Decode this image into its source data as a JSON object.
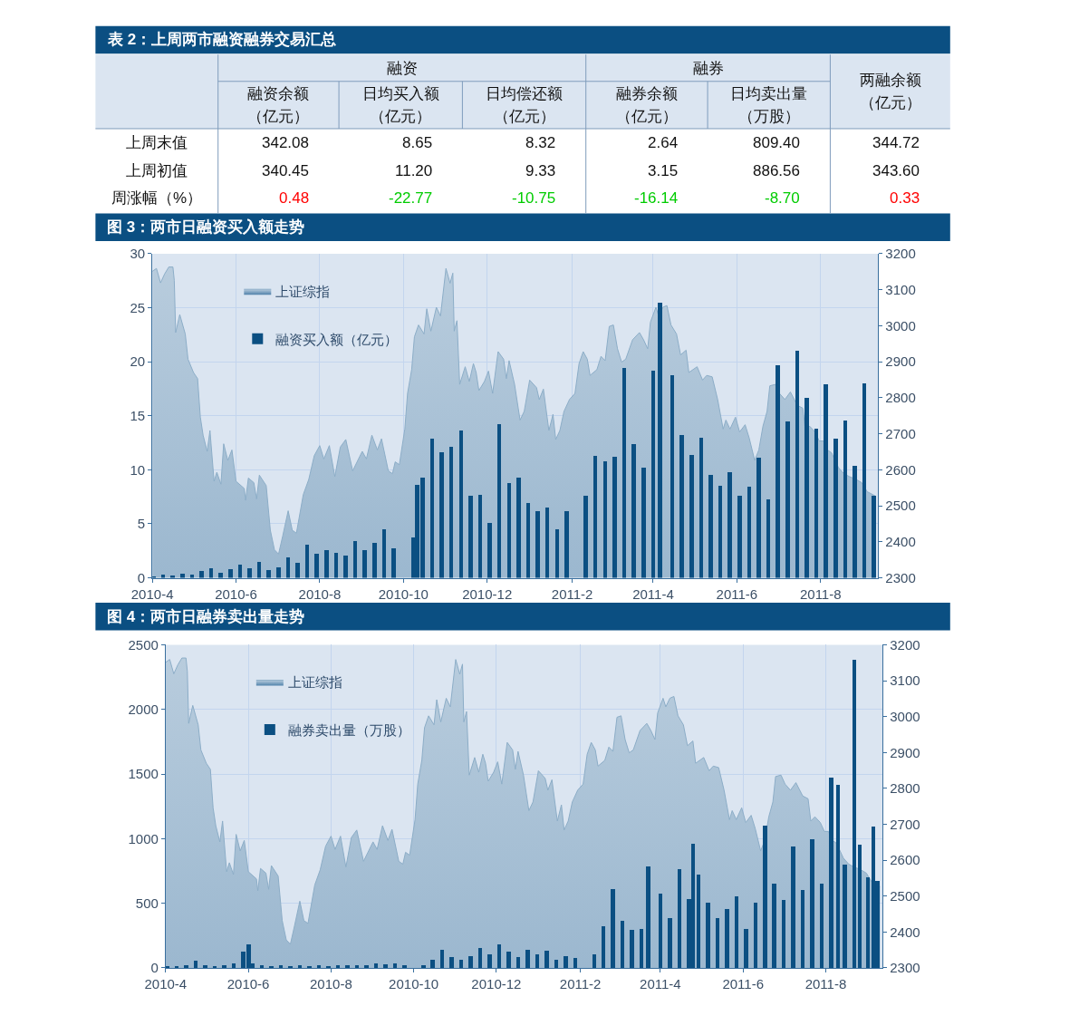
{
  "chart_data": [
    {
      "type": "other",
      "title": "表 2：上周两市融资融券交易汇总",
      "annotations": [
        "融资",
        "融券",
        "342.08",
        "8.65",
        "8.32",
        "2.64",
        "809.40",
        "344.72",
        "340.45",
        "11.20",
        "9.33",
        "3.15",
        "886.56",
        "343.60",
        "0.48",
        "-22.77",
        "-10.75",
        "-16.14",
        "-8.70",
        "0.33"
      ],
      "categories": [
        "融资余额（亿元）",
        "日均买入额（亿元）",
        "日均偿还额（亿元）",
        "融券余额（亿元）",
        "日均卖出量（万股）",
        "两融余额（亿元）"
      ],
      "y_categories": [
        "上周末值",
        "上周初值",
        "周涨幅（%）"
      ]
    },
    {
      "type": "bar",
      "title": "图 3：两市日融资买入额走势",
      "series": [
        {
          "name": "上证综指",
          "type": "area",
          "axis": "y2",
          "color": "#4f81aa",
          "x": [
            "2010-04-01",
            "2010-04-04",
            "2010-04-07",
            "2010-04-10",
            "2010-04-13",
            "2010-04-16",
            "2010-04-17",
            "2010-04-18",
            "2010-04-21",
            "2010-04-25",
            "2010-04-27",
            "2010-05-01",
            "2010-05-04",
            "2010-05-06",
            "2010-05-08",
            "2010-05-11",
            "2010-05-13",
            "2010-05-16",
            "2010-05-18",
            "2010-05-21",
            "2010-05-23",
            "2010-05-26",
            "2010-05-29",
            "2010-06-01",
            "2010-06-07",
            "2010-06-08",
            "2010-06-10",
            "2010-06-14",
            "2010-06-16",
            "2010-06-18",
            "2010-06-23",
            "2010-06-26",
            "2010-06-29",
            "2010-07-02",
            "2010-07-05",
            "2010-07-09",
            "2010-07-12",
            "2010-07-15",
            "2010-07-20",
            "2010-07-24",
            "2010-07-28",
            "2010-08-01",
            "2010-08-04",
            "2010-08-08",
            "2010-08-12",
            "2010-08-16",
            "2010-08-20",
            "2010-08-25",
            "2010-09-01",
            "2010-09-04",
            "2010-09-08",
            "2010-09-12",
            "2010-09-15",
            "2010-09-20",
            "2010-09-23",
            "2010-09-25",
            "2010-09-28",
            "2010-10-02",
            "2010-10-04",
            "2010-10-07",
            "2010-10-09",
            "2010-10-12",
            "2010-10-16",
            "2010-10-18",
            "2010-10-21",
            "2010-10-25",
            "2010-10-28",
            "2010-11-01",
            "2010-11-04",
            "2010-11-06",
            "2010-11-07",
            "2010-11-09",
            "2010-11-11",
            "2010-11-15",
            "2010-11-18",
            "2010-11-21",
            "2010-11-23",
            "2010-11-25",
            "2010-11-29",
            "2010-12-02",
            "2010-12-05",
            "2010-12-09",
            "2010-12-13",
            "2010-12-15",
            "2010-12-17",
            "2010-12-21",
            "2010-12-25",
            "2010-12-28",
            "2011-01-01",
            "2011-01-06",
            "2011-01-08",
            "2011-01-11",
            "2011-01-15",
            "2011-01-18",
            "2011-01-20",
            "2011-01-23",
            "2011-01-26",
            "2011-01-30",
            "2011-02-03",
            "2011-02-06",
            "2011-02-09",
            "2011-02-12",
            "2011-02-14",
            "2011-02-19",
            "2011-02-22",
            "2011-02-25",
            "2011-02-28",
            "2011-03-03",
            "2011-03-06",
            "2011-03-09",
            "2011-03-12",
            "2011-03-17",
            "2011-03-22",
            "2011-03-25",
            "2011-03-28",
            "2011-03-30",
            "2011-04-03",
            "2011-04-05",
            "2011-04-08",
            "2011-04-11",
            "2011-04-14",
            "2011-04-18",
            "2011-04-21",
            "2011-04-25",
            "2011-04-27",
            "2011-05-03",
            "2011-05-07",
            "2011-05-10",
            "2011-05-14",
            "2011-05-18",
            "2011-05-22",
            "2011-05-24",
            "2011-05-27",
            "2011-05-31",
            "2011-06-03",
            "2011-06-07",
            "2011-06-10",
            "2011-06-14",
            "2011-06-17",
            "2011-06-20",
            "2011-06-23",
            "2011-06-25",
            "2011-06-29",
            "2011-07-02",
            "2011-07-06",
            "2011-07-10",
            "2011-07-15",
            "2011-07-19",
            "2011-07-21",
            "2011-07-24",
            "2011-07-28",
            "2011-07-31",
            "2011-08-03",
            "2011-08-06",
            "2011-08-09",
            "2011-08-14",
            "2011-08-18",
            "2011-08-22",
            "2011-08-27",
            "2011-08-31",
            "2011-09-04",
            "2011-09-10"
          ],
          "values": [
            3151,
            3159,
            3119,
            3144,
            3163,
            3163,
            3126,
            2981,
            3031,
            2977,
            2907,
            2870,
            2853,
            2746,
            2696,
            2651,
            2709,
            2568,
            2593,
            2560,
            2672,
            2626,
            2655,
            2568,
            2548,
            2515,
            2577,
            2564,
            2519,
            2585,
            2556,
            2432,
            2378,
            2366,
            2416,
            2486,
            2432,
            2424,
            2531,
            2573,
            2639,
            2667,
            2630,
            2667,
            2581,
            2663,
            2684,
            2597,
            2651,
            2630,
            2696,
            2655,
            2686,
            2597,
            2589,
            2622,
            2614,
            2713,
            2812,
            2878,
            2969,
            3002,
            2977,
            3047,
            2985,
            3051,
            3027,
            3159,
            3118,
            3146,
            2985,
            3014,
            2837,
            2886,
            2845,
            2895,
            2870,
            2820,
            2845,
            2874,
            2812,
            2928,
            2907,
            2853,
            2903,
            2837,
            2738,
            2762,
            2849,
            2828,
            2795,
            2824,
            2709,
            2754,
            2684,
            2709,
            2762,
            2795,
            2812,
            2895,
            2928,
            2907,
            2862,
            2878,
            2915,
            2903,
            2998,
            3002,
            2936,
            2899,
            2907,
            2961,
            2981,
            2961,
            2936,
            3010,
            3051,
            3027,
            3051,
            3056,
            3002,
            2977,
            2919,
            2932,
            2870,
            2886,
            2849,
            2862,
            2858,
            2795,
            2713,
            2738,
            2713,
            2746,
            2705,
            2725,
            2688,
            2626,
            2655,
            2721,
            2762,
            2833,
            2837,
            2812,
            2795,
            2816,
            2779,
            2771,
            2709,
            2721,
            2705,
            2680,
            2680,
            2655,
            2647,
            2606,
            2589,
            2581,
            2573,
            2564,
            2539,
            2527
          ]
        },
        {
          "name": "融资买入额（亿元）",
          "color": "#0b4f82",
          "x": [
            "2010-04-02",
            "2010-04-09",
            "2010-04-16",
            "2010-04-23",
            "2010-04-30",
            "2010-05-07",
            "2010-05-14",
            "2010-05-21",
            "2010-05-28",
            "2010-06-04",
            "2010-06-11",
            "2010-06-18",
            "2010-06-25",
            "2010-07-02",
            "2010-07-09",
            "2010-07-16",
            "2010-07-23",
            "2010-07-30",
            "2010-08-06",
            "2010-08-13",
            "2010-08-20",
            "2010-08-27",
            "2010-09-03",
            "2010-09-10",
            "2010-09-17",
            "2010-09-24",
            "2010-10-08",
            "2010-10-11",
            "2010-10-15",
            "2010-10-22",
            "2010-10-29",
            "2010-11-05",
            "2010-11-12",
            "2010-11-19",
            "2010-11-26",
            "2010-12-03",
            "2010-12-10",
            "2010-12-17",
            "2010-12-24",
            "2010-12-31",
            "2011-01-07",
            "2011-01-14",
            "2011-01-21",
            "2011-01-28",
            "2011-02-11",
            "2011-02-18",
            "2011-02-25",
            "2011-03-04",
            "2011-03-11",
            "2011-03-18",
            "2011-03-25",
            "2011-04-01",
            "2011-04-06",
            "2011-04-15",
            "2011-04-22",
            "2011-04-29",
            "2011-05-06",
            "2011-05-13",
            "2011-05-20",
            "2011-05-27",
            "2011-06-03",
            "2011-06-10",
            "2011-06-17",
            "2011-06-24",
            "2011-07-01",
            "2011-07-08",
            "2011-07-15",
            "2011-07-22",
            "2011-07-29",
            "2011-08-05",
            "2011-08-12",
            "2011-08-19",
            "2011-08-26",
            "2011-09-02",
            "2011-09-09"
          ],
          "values": [
            0.1,
            0.3,
            0.2,
            0.4,
            0.3,
            0.6,
            0.9,
            0.5,
            0.8,
            1.2,
            0.9,
            1.5,
            0.7,
            1.0,
            1.9,
            1.4,
            3.1,
            2.2,
            2.6,
            2.3,
            2.1,
            3.4,
            2.6,
            3.2,
            4.5,
            2.7,
            3.7,
            8.6,
            9.3,
            12.9,
            11.6,
            12.1,
            13.6,
            7.6,
            7.7,
            5.1,
            14.2,
            8.8,
            9.3,
            6.9,
            6.2,
            6.5,
            4.5,
            6.2,
            7.6,
            11.3,
            10.8,
            11.2,
            19.4,
            12.4,
            10.2,
            19.2,
            25.5,
            18.8,
            13.2,
            11.4,
            13.0,
            9.5,
            8.5,
            9.8,
            7.6,
            8.4,
            11.1,
            7.3,
            19.7,
            14.5,
            21.0,
            16.7,
            13.8,
            17.9,
            12.9,
            14.6,
            10.4,
            18.0,
            7.6
          ]
        }
      ],
      "xlim": [
        "2010-04-01",
        "2011-09-12"
      ],
      "xticks": [
        {
          "value": "2010-04-01",
          "label": "2010-4"
        },
        {
          "value": "2010-06-01",
          "label": "2010-6"
        },
        {
          "value": "2010-08-01",
          "label": "2010-8"
        },
        {
          "value": "2010-10-01",
          "label": "2010-10"
        },
        {
          "value": "2010-12-01",
          "label": "2010-12"
        },
        {
          "value": "2011-02-01",
          "label": "2011-2"
        },
        {
          "value": "2011-04-01",
          "label": "2011-4"
        },
        {
          "value": "2011-06-01",
          "label": "2011-6"
        },
        {
          "value": "2011-08-01",
          "label": "2011-8"
        }
      ],
      "ylim": [
        0,
        30
      ],
      "yticks": [
        0,
        5,
        10,
        15,
        20,
        25,
        30
      ],
      "y2lim": [
        2300,
        3200
      ],
      "y2ticks": [
        2300,
        2400,
        2500,
        2600,
        2700,
        2800,
        2900,
        3000,
        3100,
        3200
      ],
      "grid": true,
      "legend": "top left"
    },
    {
      "type": "bar",
      "title": "图 4：两市日融券卖出量走势",
      "series": [
        {
          "name": "上证综指",
          "type": "area",
          "axis": "y2",
          "color": "#4f81aa",
          "x": [
            "2010-04-01",
            "2010-04-04",
            "2010-04-07",
            "2010-04-10",
            "2010-04-13",
            "2010-04-16",
            "2010-04-17",
            "2010-04-18",
            "2010-04-21",
            "2010-04-25",
            "2010-04-27",
            "2010-05-01",
            "2010-05-04",
            "2010-05-06",
            "2010-05-08",
            "2010-05-11",
            "2010-05-13",
            "2010-05-16",
            "2010-05-18",
            "2010-05-21",
            "2010-05-23",
            "2010-05-26",
            "2010-05-29",
            "2010-06-01",
            "2010-06-07",
            "2010-06-08",
            "2010-06-10",
            "2010-06-14",
            "2010-06-16",
            "2010-06-18",
            "2010-06-23",
            "2010-06-26",
            "2010-06-29",
            "2010-07-02",
            "2010-07-05",
            "2010-07-09",
            "2010-07-12",
            "2010-07-15",
            "2010-07-20",
            "2010-07-24",
            "2010-07-28",
            "2010-08-01",
            "2010-08-04",
            "2010-08-08",
            "2010-08-12",
            "2010-08-16",
            "2010-08-20",
            "2010-08-25",
            "2010-09-01",
            "2010-09-04",
            "2010-09-08",
            "2010-09-12",
            "2010-09-15",
            "2010-09-20",
            "2010-09-23",
            "2010-09-25",
            "2010-09-28",
            "2010-10-02",
            "2010-10-04",
            "2010-10-07",
            "2010-10-09",
            "2010-10-12",
            "2010-10-16",
            "2010-10-18",
            "2010-10-21",
            "2010-10-25",
            "2010-10-28",
            "2010-11-01",
            "2010-11-04",
            "2010-11-06",
            "2010-11-07",
            "2010-11-09",
            "2010-11-11",
            "2010-11-15",
            "2010-11-18",
            "2010-11-21",
            "2010-11-23",
            "2010-11-25",
            "2010-11-29",
            "2010-12-02",
            "2010-12-05",
            "2010-12-09",
            "2010-12-13",
            "2010-12-15",
            "2010-12-17",
            "2010-12-21",
            "2010-12-25",
            "2010-12-28",
            "2011-01-01",
            "2011-01-06",
            "2011-01-08",
            "2011-01-11",
            "2011-01-15",
            "2011-01-18",
            "2011-01-20",
            "2011-01-23",
            "2011-01-26",
            "2011-01-30",
            "2011-02-03",
            "2011-02-06",
            "2011-02-09",
            "2011-02-12",
            "2011-02-14",
            "2011-02-19",
            "2011-02-22",
            "2011-02-25",
            "2011-02-28",
            "2011-03-03",
            "2011-03-06",
            "2011-03-09",
            "2011-03-12",
            "2011-03-17",
            "2011-03-22",
            "2011-03-25",
            "2011-03-28",
            "2011-03-30",
            "2011-04-03",
            "2011-04-05",
            "2011-04-08",
            "2011-04-11",
            "2011-04-14",
            "2011-04-18",
            "2011-04-21",
            "2011-04-25",
            "2011-04-27",
            "2011-05-03",
            "2011-05-07",
            "2011-05-10",
            "2011-05-14",
            "2011-05-18",
            "2011-05-22",
            "2011-05-24",
            "2011-05-27",
            "2011-05-31",
            "2011-06-03",
            "2011-06-07",
            "2011-06-10",
            "2011-06-14",
            "2011-06-17",
            "2011-06-20",
            "2011-06-23",
            "2011-06-25",
            "2011-06-29",
            "2011-07-02",
            "2011-07-06",
            "2011-07-10",
            "2011-07-15",
            "2011-07-19",
            "2011-07-21",
            "2011-07-24",
            "2011-07-28",
            "2011-07-31",
            "2011-08-03",
            "2011-08-06",
            "2011-08-09",
            "2011-08-14",
            "2011-08-18",
            "2011-08-22",
            "2011-08-27",
            "2011-08-31",
            "2011-09-04",
            "2011-09-10"
          ],
          "values": [
            3151,
            3159,
            3119,
            3144,
            3163,
            3163,
            3126,
            2981,
            3031,
            2977,
            2907,
            2870,
            2853,
            2746,
            2696,
            2651,
            2709,
            2568,
            2593,
            2560,
            2672,
            2626,
            2655,
            2568,
            2548,
            2515,
            2577,
            2564,
            2519,
            2585,
            2556,
            2432,
            2378,
            2366,
            2416,
            2486,
            2432,
            2424,
            2531,
            2573,
            2639,
            2667,
            2630,
            2667,
            2581,
            2663,
            2684,
            2597,
            2651,
            2630,
            2696,
            2655,
            2686,
            2597,
            2589,
            2622,
            2614,
            2713,
            2812,
            2878,
            2969,
            3002,
            2977,
            3047,
            2985,
            3051,
            3027,
            3159,
            3118,
            3146,
            2985,
            3014,
            2837,
            2886,
            2845,
            2895,
            2870,
            2820,
            2845,
            2874,
            2812,
            2928,
            2907,
            2853,
            2903,
            2837,
            2738,
            2762,
            2849,
            2828,
            2795,
            2824,
            2709,
            2754,
            2684,
            2709,
            2762,
            2795,
            2812,
            2895,
            2928,
            2907,
            2862,
            2878,
            2915,
            2903,
            2998,
            3002,
            2936,
            2899,
            2907,
            2961,
            2981,
            2961,
            2936,
            3010,
            3051,
            3027,
            3051,
            3056,
            3002,
            2977,
            2919,
            2932,
            2870,
            2886,
            2849,
            2862,
            2858,
            2795,
            2713,
            2738,
            2713,
            2746,
            2705,
            2725,
            2688,
            2626,
            2655,
            2721,
            2762,
            2833,
            2837,
            2812,
            2795,
            2816,
            2779,
            2771,
            2709,
            2721,
            2705,
            2680,
            2680,
            2655,
            2647,
            2606,
            2589,
            2581,
            2573,
            2564,
            2539,
            2527
          ]
        },
        {
          "name": "融券卖出量（万股）",
          "color": "#0b4f82",
          "x": [
            "2010-04-02",
            "2010-04-09",
            "2010-04-16",
            "2010-04-23",
            "2010-04-30",
            "2010-05-07",
            "2010-05-14",
            "2010-05-21",
            "2010-05-28",
            "2010-06-01",
            "2010-06-04",
            "2010-06-11",
            "2010-06-18",
            "2010-06-25",
            "2010-07-02",
            "2010-07-09",
            "2010-07-16",
            "2010-07-23",
            "2010-07-30",
            "2010-08-06",
            "2010-08-13",
            "2010-08-20",
            "2010-08-27",
            "2010-09-03",
            "2010-09-10",
            "2010-09-17",
            "2010-09-24",
            "2010-10-08",
            "2010-10-15",
            "2010-10-22",
            "2010-10-29",
            "2010-11-05",
            "2010-11-12",
            "2010-11-19",
            "2010-11-26",
            "2010-12-03",
            "2010-12-10",
            "2010-12-17",
            "2010-12-24",
            "2010-12-31",
            "2011-01-07",
            "2011-01-14",
            "2011-01-21",
            "2011-01-28",
            "2011-02-11",
            "2011-02-18",
            "2011-02-25",
            "2011-03-04",
            "2011-03-11",
            "2011-03-18",
            "2011-03-23",
            "2011-04-01",
            "2011-04-08",
            "2011-04-15",
            "2011-04-22",
            "2011-04-25",
            "2011-04-29",
            "2011-05-06",
            "2011-05-13",
            "2011-05-20",
            "2011-05-27",
            "2011-06-03",
            "2011-06-10",
            "2011-06-17",
            "2011-06-24",
            "2011-07-01",
            "2011-07-08",
            "2011-07-15",
            "2011-07-22",
            "2011-07-29",
            "2011-08-05",
            "2011-08-10",
            "2011-08-15",
            "2011-08-22",
            "2011-08-26",
            "2011-09-01",
            "2011-09-05",
            "2011-09-08"
          ],
          "values": [
            5,
            10,
            15,
            50,
            20,
            10,
            15,
            35,
            120,
            180,
            30,
            20,
            10,
            15,
            10,
            15,
            10,
            15,
            10,
            20,
            15,
            15,
            20,
            30,
            25,
            35,
            20,
            15,
            60,
            135,
            80,
            60,
            90,
            150,
            100,
            180,
            120,
            80,
            140,
            100,
            130,
            60,
            90,
            75,
            100,
            320,
            610,
            360,
            290,
            300,
            780,
            570,
            380,
            760,
            530,
            955,
            720,
            500,
            380,
            450,
            550,
            300,
            500,
            1100,
            650,
            520,
            940,
            600,
            990,
            650,
            1470,
            1410,
            800,
            2380,
            950,
            700,
            1090,
            670
          ]
        }
      ],
      "xlim": [
        "2010-04-01",
        "2011-09-12"
      ],
      "xticks": [
        {
          "value": "2010-04-01",
          "label": "2010-4"
        },
        {
          "value": "2010-06-01",
          "label": "2010-6"
        },
        {
          "value": "2010-08-01",
          "label": "2010-8"
        },
        {
          "value": "2010-10-01",
          "label": "2010-10"
        },
        {
          "value": "2010-12-01",
          "label": "2010-12"
        },
        {
          "value": "2011-02-01",
          "label": "2011-2"
        },
        {
          "value": "2011-04-01",
          "label": "2011-4"
        },
        {
          "value": "2011-06-01",
          "label": "2011-6"
        },
        {
          "value": "2011-08-01",
          "label": "2011-8"
        }
      ],
      "ylim": [
        0,
        2500
      ],
      "yticks": [
        0,
        500,
        1000,
        1500,
        2000,
        2500
      ],
      "y2lim": [
        2300,
        3200
      ],
      "y2ticks": [
        2300,
        2400,
        2500,
        2600,
        2700,
        2800,
        2900,
        3000,
        3100,
        3200
      ],
      "grid": true,
      "legend": "top left"
    }
  ]
}
